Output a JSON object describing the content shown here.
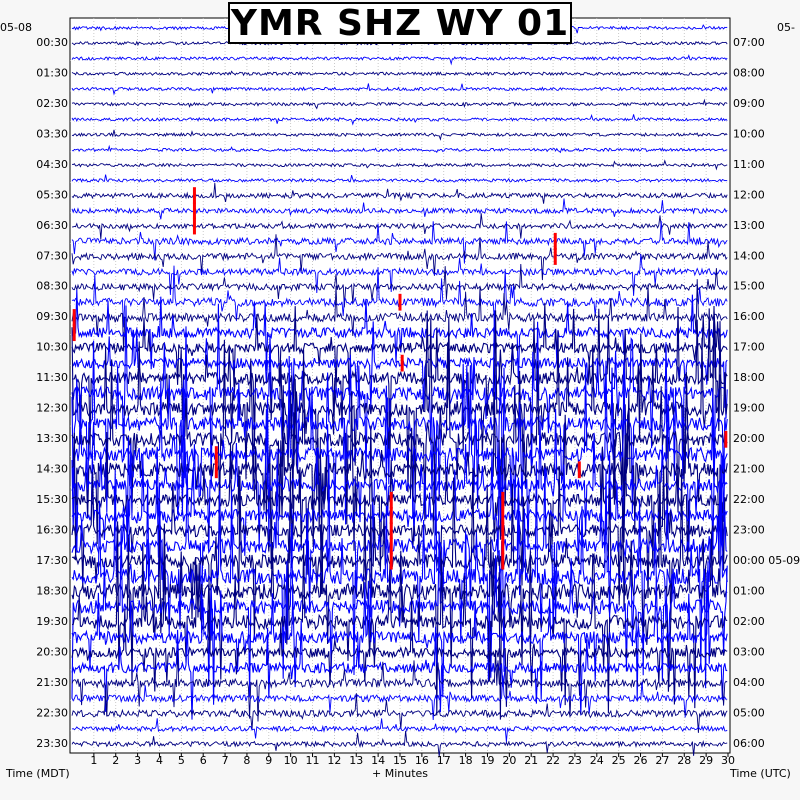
{
  "chart_data": {
    "type": "line",
    "title": "YMR SHZ WY 01",
    "left_axis_label": "Time (MDT)",
    "right_axis_label": "Time (UTC)",
    "xlabel": "+ Minutes",
    "left_date": "05-08",
    "right_date": "05-",
    "right_date_second": "05-09",
    "x_ticks": [
      "1",
      "2",
      "3",
      "4",
      "5",
      "6",
      "7",
      "8",
      "9",
      "10",
      "11",
      "12",
      "13",
      "14",
      "15",
      "16",
      "17",
      "18",
      "19",
      "20",
      "21",
      "22",
      "23",
      "24",
      "25",
      "26",
      "27",
      "28",
      "29",
      "30"
    ],
    "xlim": [
      0,
      30
    ],
    "left_tick_labels": [
      "00:30",
      "01:30",
      "02:30",
      "03:30",
      "04:30",
      "05:30",
      "06:30",
      "07:30",
      "08:30",
      "09:30",
      "10:30",
      "11:30",
      "12:30",
      "13:30",
      "14:30",
      "15:30",
      "16:30",
      "17:30",
      "18:30",
      "19:30",
      "20:30",
      "21:30",
      "22:30",
      "23:30"
    ],
    "right_tick_labels": [
      "07:00",
      "08:00",
      "09:00",
      "10:00",
      "11:00",
      "12:00",
      "13:00",
      "14:00",
      "15:00",
      "16:00",
      "17:00",
      "18:00",
      "19:00",
      "20:00",
      "21:00",
      "22:00",
      "23:00",
      "00:00 05-09",
      "01:00",
      "02:00",
      "03:00",
      "04:00",
      "05:00",
      "06:00"
    ],
    "trace_count": 48,
    "minutes_per_trace": 30,
    "trace_colors": [
      "#0000ff",
      "#000080"
    ],
    "clip_color": "#ff0000",
    "grid": true,
    "legend": "none",
    "activity_levels": [
      1,
      1,
      1,
      1,
      1,
      1,
      1,
      1,
      1,
      1,
      1,
      2,
      2,
      2,
      3,
      3,
      3,
      3,
      4,
      4,
      5,
      5,
      5,
      6,
      7,
      7,
      7,
      7,
      7,
      7,
      6,
      6,
      6,
      6,
      7,
      7,
      8,
      8,
      7,
      7,
      6,
      5,
      5,
      4,
      3,
      3,
      2,
      2
    ],
    "clip_events": [
      {
        "trace": 11,
        "minute": 5.6
      },
      {
        "trace": 12,
        "minute": 5.6
      },
      {
        "trace": 13,
        "minute": 5.6
      },
      {
        "trace": 14,
        "minute": 22.1
      },
      {
        "trace": 15,
        "minute": 22.1
      },
      {
        "trace": 18,
        "minute": 15.0
      },
      {
        "trace": 19,
        "minute": 0.1
      },
      {
        "trace": 20,
        "minute": 0.1
      },
      {
        "trace": 22,
        "minute": 15.1
      },
      {
        "trace": 28,
        "minute": 6.6
      },
      {
        "trace": 29,
        "minute": 6.6
      },
      {
        "trace": 29,
        "minute": 23.2
      },
      {
        "trace": 31,
        "minute": 14.6
      },
      {
        "trace": 32,
        "minute": 14.6
      },
      {
        "trace": 33,
        "minute": 14.6
      },
      {
        "trace": 34,
        "minute": 14.6
      },
      {
        "trace": 35,
        "minute": 14.6
      },
      {
        "trace": 31,
        "minute": 19.7
      },
      {
        "trace": 32,
        "minute": 19.7
      },
      {
        "trace": 33,
        "minute": 19.7
      },
      {
        "trace": 34,
        "minute": 19.7
      },
      {
        "trace": 35,
        "minute": 19.7
      },
      {
        "trace": 27,
        "minute": 29.9
      }
    ]
  }
}
